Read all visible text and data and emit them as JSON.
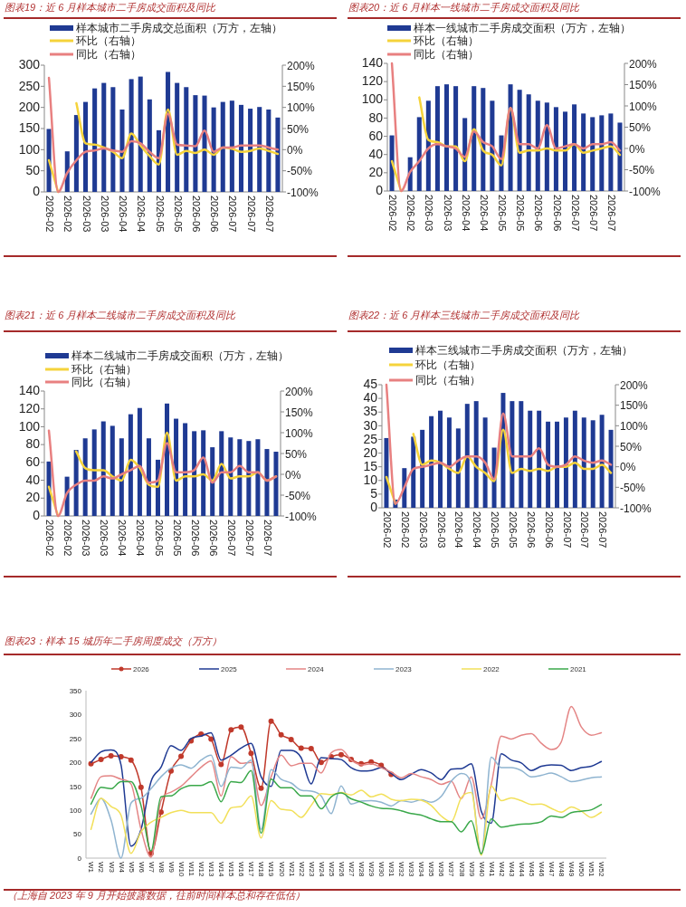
{
  "chart_data": [
    {
      "type": "bar",
      "title": "图表19：近 6 月样本城市二手房成交面积及同比",
      "legend": "top",
      "categories": [
        "2026-02",
        null,
        "2026-02",
        null,
        "2026-03",
        null,
        "2026-03",
        null,
        "2026-04",
        null,
        "2026-04",
        null,
        "2026-05",
        null,
        "2026-05",
        null,
        "2026-06",
        null,
        "2026-06",
        null,
        "2026-07",
        null,
        "2026-07",
        null,
        "2026-07",
        null
      ],
      "ylim": [
        0,
        300
      ],
      "yticks": [
        0,
        50,
        100,
        150,
        200,
        250,
        300
      ],
      "y2lim": [
        -100,
        200
      ],
      "y2ticks": [
        {
          "value": -100,
          "label": "-100%"
        },
        {
          "value": -50,
          "label": "-50%"
        },
        {
          "value": 0,
          "label": "0%"
        },
        {
          "value": 50,
          "label": "50%"
        },
        {
          "value": 100,
          "label": "100%"
        },
        {
          "value": 150,
          "label": "150%"
        },
        {
          "value": 200,
          "label": "200%"
        }
      ],
      "series": [
        {
          "name": "样本城市二手房成交总面积（万方，左轴）",
          "type": "bar",
          "color": "#1f3a93",
          "values": [
            149,
            null,
            96,
            182,
            213,
            245,
            258,
            248,
            195,
            267,
            273,
            219,
            146,
            284,
            258,
            248,
            229,
            228,
            200,
            213,
            216,
            206,
            197,
            201,
            195,
            176
          ]
        },
        {
          "name": "环比（右轴）",
          "type": "line",
          "axis": "y2",
          "color": "#f5d33b",
          "values": [
            -25,
            -100,
            null,
            110,
            15,
            12,
            5,
            -5,
            -20,
            38,
            10,
            -15,
            -35,
            95,
            -12,
            -3,
            -8,
            0,
            -12,
            5,
            2,
            -5,
            -3,
            3,
            -3,
            -10
          ]
        },
        {
          "name": "同比（右轴）",
          "type": "line",
          "axis": "y2",
          "color": "#e88080",
          "values": [
            170,
            -100,
            -55,
            -25,
            -5,
            -2,
            3,
            -2,
            -5,
            20,
            15,
            -5,
            -20,
            85,
            12,
            10,
            8,
            45,
            -5,
            5,
            5,
            10,
            10,
            10,
            5,
            0
          ]
        }
      ]
    },
    {
      "type": "bar",
      "title": "图表20：近 6 月样本一线城市二手房成交面积及同比",
      "legend": "top",
      "categories": [
        "2026-02",
        null,
        "2026-02",
        null,
        "2026-03",
        null,
        "2026-03",
        null,
        "2026-04",
        null,
        "2026-04",
        null,
        "2026-05",
        null,
        "2026-05",
        null,
        "2026-06",
        null,
        "2026-06",
        null,
        "2026-07",
        null,
        "2026-07",
        null,
        "2026-07",
        null
      ],
      "ylim": [
        0,
        140
      ],
      "yticks": [
        0,
        20,
        40,
        60,
        80,
        100,
        120,
        140
      ],
      "y2lim": [
        -100,
        200
      ],
      "y2ticks": [
        {
          "value": -100,
          "label": "-100%"
        },
        {
          "value": -50,
          "label": "-50%"
        },
        {
          "value": 0,
          "label": "0%"
        },
        {
          "value": 50,
          "label": "50%"
        },
        {
          "value": 100,
          "label": "100%"
        },
        {
          "value": 150,
          "label": "150%"
        },
        {
          "value": 200,
          "label": "200%"
        }
      ],
      "series": [
        {
          "name": "样本一线城市二手房成交面积（万方，左轴）",
          "type": "bar",
          "color": "#1f3a93",
          "values": [
            61,
            null,
            37,
            81,
            99,
            115,
            117,
            115,
            80,
            115,
            113,
            99,
            61,
            117,
            111,
            106,
            99,
            97,
            92,
            87,
            95,
            85,
            81,
            83,
            85,
            75
          ]
        },
        {
          "name": "环比（右轴）",
          "type": "line",
          "axis": "y2",
          "color": "#f5d33b",
          "values": [
            -30,
            -100,
            null,
            120,
            20,
            15,
            5,
            5,
            -30,
            45,
            -5,
            -15,
            -40,
            95,
            -10,
            -5,
            -5,
            0,
            -5,
            -5,
            10,
            -10,
            -5,
            0,
            5,
            -15
          ]
        },
        {
          "name": "同比（右轴）",
          "type": "line",
          "axis": "y2",
          "color": "#e88080",
          "values": [
            200,
            -100,
            -55,
            -30,
            0,
            10,
            5,
            0,
            -20,
            40,
            15,
            5,
            -25,
            95,
            10,
            10,
            0,
            55,
            0,
            5,
            10,
            0,
            10,
            10,
            15,
            -5
          ]
        }
      ]
    },
    {
      "type": "bar",
      "title": "图表21：近 6 月样本二线城市二手房成交面积及同比",
      "legend": "top",
      "categories": [
        "2026-02",
        null,
        "2026-02",
        null,
        "2026-03",
        null,
        "2026-03",
        null,
        "2026-04",
        null,
        "2026-04",
        null,
        "2026-05",
        null,
        "2026-05",
        null,
        "2026-06",
        null,
        "2026-06",
        null,
        "2026-07",
        null,
        "2026-07",
        null,
        "2026-07",
        null
      ],
      "ylim": [
        0,
        140
      ],
      "yticks": [
        0,
        20,
        40,
        60,
        80,
        100,
        120,
        140
      ],
      "y2lim": [
        -100,
        200
      ],
      "y2ticks": [
        {
          "value": -100,
          "label": "-100%"
        },
        {
          "value": -50,
          "label": "-50%"
        },
        {
          "value": 0,
          "label": "0%"
        },
        {
          "value": 50,
          "label": "50%"
        },
        {
          "value": 100,
          "label": "100%"
        },
        {
          "value": 150,
          "label": "150%"
        },
        {
          "value": 200,
          "label": "200%"
        }
      ],
      "series": [
        {
          "name": "样本二线城市二手房成交面积（万方，左轴）",
          "type": "bar",
          "color": "#1f3a93",
          "values": [
            61,
            null,
            44,
            74,
            87,
            97,
            106,
            101,
            87,
            114,
            121,
            87,
            63,
            126,
            109,
            104,
            95,
            96,
            77,
            95,
            88,
            86,
            84,
            86,
            75,
            72
          ]
        },
        {
          "name": "环比（右轴）",
          "type": "line",
          "axis": "y2",
          "color": "#f5d33b",
          "values": [
            -30,
            -100,
            null,
            55,
            15,
            10,
            10,
            -5,
            -15,
            35,
            15,
            -25,
            -30,
            100,
            -15,
            -5,
            -5,
            0,
            -15,
            25,
            -10,
            -5,
            -5,
            5,
            -15,
            -5
          ]
        },
        {
          "name": "同比（右轴）",
          "type": "line",
          "axis": "y2",
          "color": "#e88080",
          "values": [
            105,
            -100,
            -45,
            -25,
            -15,
            -15,
            -5,
            -10,
            0,
            10,
            20,
            -20,
            -15,
            75,
            5,
            5,
            10,
            40,
            -20,
            5,
            5,
            20,
            5,
            5,
            -15,
            -5
          ]
        }
      ]
    },
    {
      "type": "bar",
      "title": "图表22：近 6 月样本三线城市二手房成交面积及同比",
      "legend": "top",
      "categories": [
        "2026-02",
        null,
        "2026-02",
        null,
        "2026-03",
        null,
        "2026-03",
        null,
        "2026-04",
        null,
        "2026-04",
        null,
        "2026-05",
        null,
        "2026-05",
        null,
        "2026-06",
        null,
        "2026-06",
        null,
        "2026-07",
        null,
        "2026-07",
        null,
        "2026-07",
        null
      ],
      "ylim": [
        0,
        45
      ],
      "yticks": [
        0,
        5,
        10,
        15,
        20,
        25,
        30,
        35,
        40,
        45
      ],
      "y2lim": [
        -100,
        200
      ],
      "y2ticks": [
        {
          "value": -100,
          "label": "-100%"
        },
        {
          "value": -50,
          "label": "-50%"
        },
        {
          "value": 0,
          "label": "0%"
        },
        {
          "value": 50,
          "label": "50%"
        },
        {
          "value": 100,
          "label": "100%"
        },
        {
          "value": 150,
          "label": "150%"
        },
        {
          "value": 200,
          "label": "200%"
        }
      ],
      "series": [
        {
          "name": "样本三线城市二手房成交面积（万方，左轴）",
          "type": "bar",
          "color": "#1f3a93",
          "values": [
            25.5,
            3,
            14.5,
            26,
            28.5,
            33.5,
            35.5,
            33,
            29,
            38,
            39,
            33,
            22,
            42,
            39,
            39,
            35.5,
            35.5,
            31.5,
            31.5,
            33,
            35.5,
            33,
            32,
            34,
            28.5
          ]
        },
        {
          "name": "环比（右轴）",
          "type": "line",
          "axis": "y2",
          "color": "#f5d33b",
          "values": [
            -25,
            -90,
            null,
            80,
            5,
            15,
            10,
            -5,
            -15,
            25,
            0,
            -15,
            -35,
            90,
            -15,
            -5,
            -10,
            -5,
            -10,
            0,
            0,
            10,
            -5,
            -5,
            5,
            -15
          ]
        },
        {
          "name": "同比（右轴）",
          "type": "line",
          "axis": "y2",
          "color": "#e88080",
          "values": [
            200,
            -90,
            -50,
            -5,
            0,
            5,
            10,
            0,
            15,
            25,
            25,
            10,
            -30,
            130,
            25,
            25,
            25,
            45,
            5,
            0,
            5,
            25,
            15,
            10,
            15,
            5
          ]
        }
      ]
    },
    {
      "type": "line",
      "title": "图表23：样本 15 城历年二手房周度成交（万方）",
      "legend": "top",
      "annotations": [
        "（上海自 2023 年 9 月开始披露数据，往前时间样本总和存在低估）"
      ],
      "ylim": [
        0,
        350
      ],
      "yticks": [
        0,
        50,
        100,
        150,
        200,
        250,
        300,
        350
      ],
      "categories": [
        "W1",
        "W2",
        "W3",
        "W4",
        "W5",
        "W6",
        "W7",
        "W8",
        "W9",
        "W10",
        "W11",
        "W12",
        "W13",
        "W14",
        "W15",
        "W16",
        "W17",
        "W18",
        "W19",
        "W20",
        "W21",
        "W22",
        "W23",
        "W24",
        "W25",
        "W26",
        "W27",
        "W28",
        "W29",
        "W30",
        "W31",
        "W32",
        "W33",
        "W34",
        "W35",
        "W36",
        "W37",
        "W38",
        "W39",
        "W40",
        "W41",
        "W42",
        "W43",
        "W44",
        "W45",
        "W46",
        "W47",
        "W48",
        "W49",
        "W50",
        "W51",
        "W52"
      ],
      "series": [
        {
          "name": "2026",
          "color": "#c0392b",
          "marker": "circle",
          "values": [
            197,
            206,
            214,
            212,
            205,
            148,
            10,
            96,
            182,
            213,
            245,
            259,
            249,
            196,
            268,
            274,
            219,
            146,
            286,
            258,
            248,
            230,
            229,
            200,
            212,
            216,
            206,
            197,
            201,
            194,
            175,
            null,
            null,
            null,
            null,
            null,
            null,
            null,
            null,
            null,
            null,
            null,
            null,
            null,
            null,
            null,
            null,
            null,
            null,
            null,
            null,
            null
          ]
        },
        {
          "name": "2025",
          "color": "#1f3a93",
          "values": [
            200,
            222,
            226,
            195,
            25,
            60,
            160,
            190,
            235,
            225,
            250,
            255,
            262,
            205,
            215,
            230,
            240,
            170,
            150,
            225,
            225,
            210,
            155,
            210,
            208,
            206,
            189,
            182,
            183,
            189,
            177,
            164,
            175,
            185,
            178,
            164,
            186,
            187,
            197,
            98,
            73,
            218,
            205,
            199,
            183,
            192,
            195,
            194,
            183,
            189,
            192,
            202
          ]
        },
        {
          "name": "2024",
          "color": "#e48585",
          "values": [
            125,
            170,
            172,
            165,
            155,
            60,
            2,
            120,
            138,
            150,
            170,
            190,
            203,
            130,
            212,
            198,
            200,
            110,
            170,
            215,
            193,
            198,
            198,
            178,
            220,
            227,
            205,
            195,
            197,
            189,
            180,
            168,
            177,
            170,
            164,
            154,
            161,
            124,
            170,
            82,
            154,
            255,
            249,
            257,
            260,
            240,
            227,
            243,
            317,
            274,
            257,
            262
          ]
        },
        {
          "name": "2023",
          "color": "#8fb4d0",
          "values": [
            92,
            125,
            80,
            0,
            115,
            125,
            145,
            170,
            188,
            195,
            188,
            205,
            215,
            150,
            190,
            188,
            205,
            60,
            185,
            165,
            157,
            142,
            140,
            130,
            93,
            151,
            113,
            119,
            120,
            117,
            109,
            120,
            117,
            122,
            117,
            129,
            161,
            177,
            154,
            9,
            211,
            189,
            189,
            183,
            170,
            173,
            178,
            170,
            160,
            163,
            168,
            170
          ]
        },
        {
          "name": "2022",
          "color": "#f2e05a",
          "values": [
            60,
            125,
            108,
            90,
            10,
            55,
            75,
            85,
            95,
            100,
            95,
            95,
            95,
            73,
            105,
            108,
            130,
            42,
            120,
            102,
            100,
            85,
            110,
            135,
            133,
            137,
            132,
            142,
            128,
            134,
            123,
            120,
            123,
            121,
            110,
            88,
            76,
            126,
            137,
            6,
            151,
            120,
            126,
            120,
            112,
            113,
            104,
            96,
            107,
            98,
            85,
            96
          ]
        },
        {
          "name": "2021",
          "color": "#3aa84a",
          "values": [
            113,
            148,
            145,
            160,
            160,
            110,
            15,
            128,
            130,
            145,
            152,
            152,
            160,
            118,
            160,
            158,
            183,
            52,
            165,
            147,
            147,
            130,
            130,
            103,
            128,
            136,
            124,
            117,
            109,
            104,
            103,
            99,
            93,
            90,
            82,
            76,
            76,
            55,
            78,
            9,
            82,
            65,
            68,
            71,
            72,
            76,
            88,
            85,
            95,
            98,
            101,
            112
          ]
        }
      ]
    }
  ]
}
